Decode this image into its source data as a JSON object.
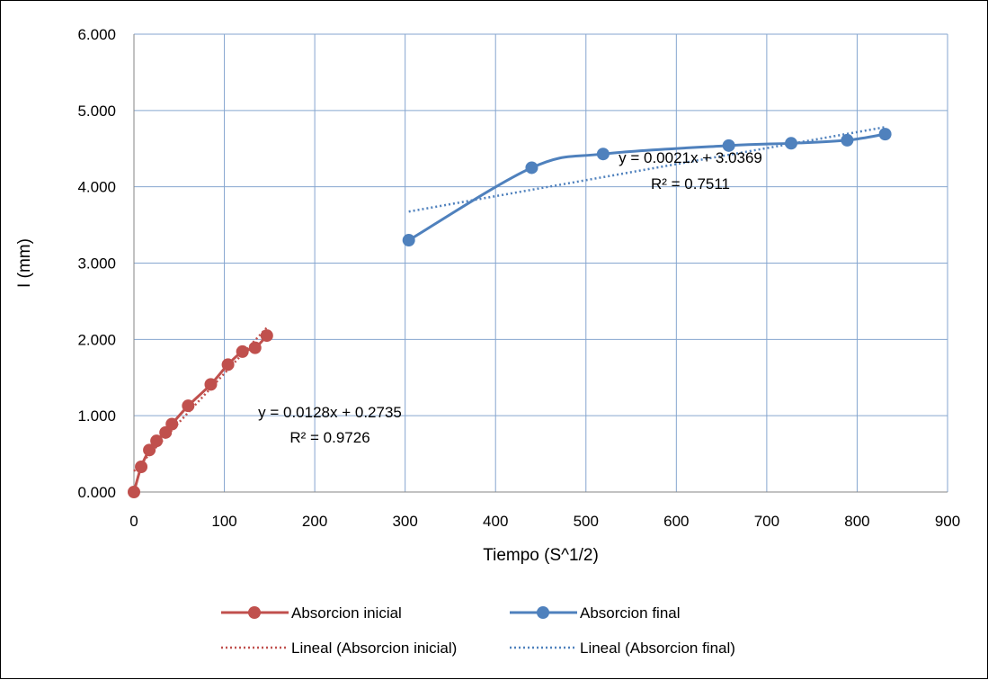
{
  "chart_data": {
    "type": "scatter",
    "xlabel": "Tiempo (S^1/2)",
    "ylabel": "I (mm)",
    "xlim": [
      0,
      900
    ],
    "ylim": [
      0,
      6
    ],
    "x_ticks": [
      "0",
      "100",
      "200",
      "300",
      "400",
      "500",
      "600",
      "700",
      "800",
      "900"
    ],
    "y_ticks": [
      "0.000",
      "1.000",
      "2.000",
      "3.000",
      "4.000",
      "5.000",
      "6.000"
    ],
    "grid": true,
    "legend_position": "bottom",
    "series": [
      {
        "name": "Absorcion inicial",
        "color": "#C0504D",
        "marker": "circle",
        "line": "smooth",
        "x": [
          0,
          8,
          17,
          25,
          35,
          42,
          60,
          85,
          104,
          120,
          134,
          147
        ],
        "y": [
          0.0,
          0.33,
          0.55,
          0.67,
          0.78,
          0.89,
          1.13,
          1.41,
          1.67,
          1.84,
          1.89,
          2.05
        ]
      },
      {
        "name": "Absorcion final",
        "color": "#4F81BD",
        "marker": "circle",
        "line": "smooth",
        "x": [
          304,
          440,
          519,
          658,
          727,
          789,
          831
        ],
        "y": [
          3.3,
          4.25,
          4.43,
          4.54,
          4.57,
          4.61,
          4.69
        ]
      }
    ],
    "trendlines": [
      {
        "name": "Lineal (Absorcion inicial)",
        "color": "#C0504D",
        "style": "dotted",
        "slope": 0.0128,
        "intercept": 0.2735,
        "x_range": [
          0,
          147
        ],
        "equation": "y = 0.0128x + 0.2735",
        "r2": "R² = 0.9726"
      },
      {
        "name": "Lineal (Absorcion final)",
        "color": "#4F81BD",
        "style": "dotted",
        "slope": 0.0021,
        "intercept": 3.0369,
        "x_range": [
          304,
          831
        ],
        "equation": "y = 0.0021x + 3.0369",
        "r2": "R² = 0.7511"
      }
    ]
  }
}
